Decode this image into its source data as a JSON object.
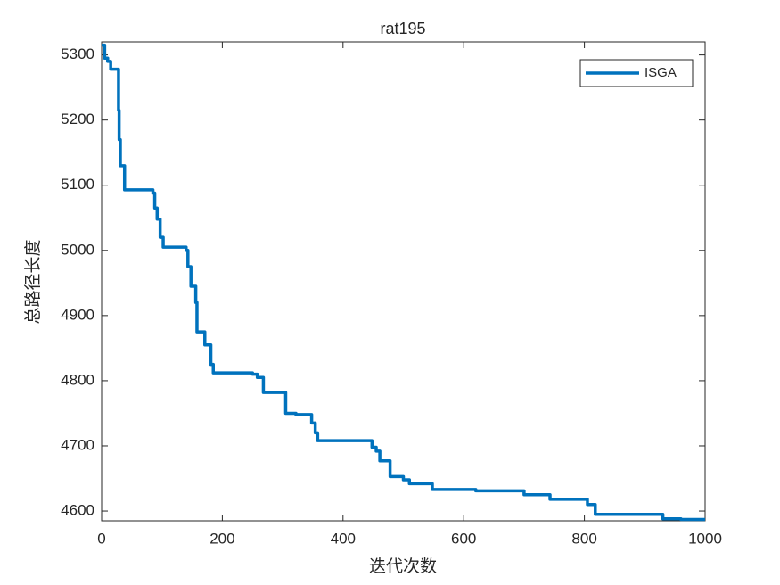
{
  "chart_data": {
    "type": "line",
    "title": "rat195",
    "xlabel": "迭代次数",
    "ylabel": "总路径长度",
    "x": [
      0,
      5,
      5,
      10,
      10,
      15,
      15,
      28,
      28,
      29,
      29,
      31,
      31,
      38,
      38,
      85,
      85,
      88,
      88,
      92,
      92,
      97,
      97,
      102,
      102,
      140,
      140,
      143,
      143,
      148,
      148,
      156,
      156,
      158,
      158,
      171,
      171,
      181,
      181,
      185,
      185,
      250,
      250,
      258,
      258,
      268,
      268,
      305,
      305,
      322,
      322,
      348,
      348,
      354,
      354,
      358,
      358,
      448,
      448,
      455,
      455,
      461,
      461,
      478,
      478,
      500,
      500,
      510,
      510,
      548,
      548,
      620,
      620,
      700,
      700,
      743,
      743,
      805,
      805,
      818,
      818,
      930,
      930,
      960,
      960,
      1000
    ],
    "series": [
      {
        "name": "ISGA",
        "color": "#0072BD",
        "values": [
          5315,
          5315,
          5295,
          5295,
          5290,
          5290,
          5278,
          5278,
          5215,
          5215,
          5170,
          5170,
          5130,
          5130,
          5093,
          5093,
          5088,
          5088,
          5065,
          5065,
          5048,
          5048,
          5020,
          5020,
          5005,
          5005,
          5000,
          5000,
          4975,
          4975,
          4945,
          4945,
          4920,
          4920,
          4875,
          4875,
          4855,
          4855,
          4825,
          4825,
          4812,
          4812,
          4810,
          4810,
          4805,
          4805,
          4782,
          4782,
          4750,
          4750,
          4748,
          4748,
          4735,
          4735,
          4720,
          4720,
          4708,
          4708,
          4698,
          4698,
          4692,
          4692,
          4677,
          4677,
          4653,
          4653,
          4648,
          4648,
          4642,
          4642,
          4633,
          4633,
          4631,
          4631,
          4625,
          4625,
          4618,
          4618,
          4610,
          4610,
          4595,
          4595,
          4588,
          4588,
          4587,
          4587
        ]
      }
    ],
    "xlim": [
      0,
      1000
    ],
    "xticks": [
      0,
      200,
      400,
      600,
      800,
      1000
    ],
    "ylim": [
      4585,
      5320
    ],
    "yticks": [
      4600,
      4700,
      4800,
      4900,
      5000,
      5100,
      5200,
      5300
    ],
    "legend": "top-right",
    "grid": false
  }
}
